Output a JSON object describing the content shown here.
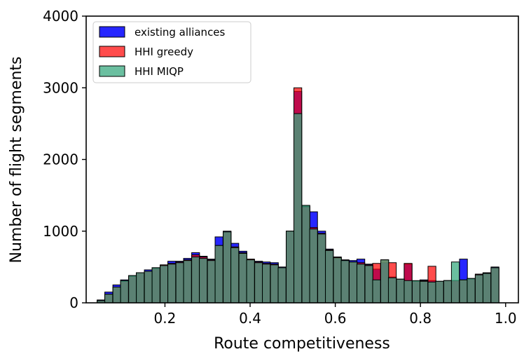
{
  "chart_data": {
    "type": "bar",
    "xlabel": "Route competitiveness",
    "ylabel": "Number of flight segments",
    "xlim": [
      0.015,
      1.03
    ],
    "ylim": [
      0,
      4000
    ],
    "xticks": [
      "0.2",
      "0.4",
      "0.6",
      "0.8",
      "1.0"
    ],
    "yticks": [
      "0",
      "1000",
      "2000",
      "3000",
      "4000"
    ],
    "grid": false,
    "legend_position": "top-left",
    "bin_width": 0.0185,
    "series": [
      {
        "name": "existing alliances",
        "color": "#0000ff",
        "bins": [
          {
            "x": 0.05,
            "y": 40
          },
          {
            "x": 0.068,
            "y": 150
          },
          {
            "x": 0.087,
            "y": 250
          },
          {
            "x": 0.105,
            "y": 320
          },
          {
            "x": 0.124,
            "y": 380
          },
          {
            "x": 0.142,
            "y": 420
          },
          {
            "x": 0.161,
            "y": 460
          },
          {
            "x": 0.179,
            "y": 490
          },
          {
            "x": 0.198,
            "y": 520
          },
          {
            "x": 0.216,
            "y": 580
          },
          {
            "x": 0.235,
            "y": 580
          },
          {
            "x": 0.253,
            "y": 620
          },
          {
            "x": 0.272,
            "y": 700
          },
          {
            "x": 0.29,
            "y": 650
          },
          {
            "x": 0.309,
            "y": 610
          },
          {
            "x": 0.327,
            "y": 920
          },
          {
            "x": 0.346,
            "y": 1000
          },
          {
            "x": 0.364,
            "y": 830
          },
          {
            "x": 0.383,
            "y": 720
          },
          {
            "x": 0.401,
            "y": 600
          },
          {
            "x": 0.42,
            "y": 580
          },
          {
            "x": 0.438,
            "y": 570
          },
          {
            "x": 0.457,
            "y": 560
          },
          {
            "x": 0.475,
            "y": 500
          },
          {
            "x": 0.494,
            "y": 1000
          },
          {
            "x": 0.512,
            "y": 2950
          },
          {
            "x": 0.531,
            "y": 1350
          },
          {
            "x": 0.549,
            "y": 1270
          },
          {
            "x": 0.568,
            "y": 1000
          },
          {
            "x": 0.586,
            "y": 750
          },
          {
            "x": 0.605,
            "y": 620
          },
          {
            "x": 0.623,
            "y": 600
          },
          {
            "x": 0.642,
            "y": 590
          },
          {
            "x": 0.66,
            "y": 610
          },
          {
            "x": 0.679,
            "y": 540
          },
          {
            "x": 0.697,
            "y": 470
          },
          {
            "x": 0.716,
            "y": 560
          },
          {
            "x": 0.734,
            "y": 360
          },
          {
            "x": 0.753,
            "y": 330
          },
          {
            "x": 0.771,
            "y": 540
          },
          {
            "x": 0.79,
            "y": 300
          },
          {
            "x": 0.808,
            "y": 320
          },
          {
            "x": 0.827,
            "y": 310
          },
          {
            "x": 0.845,
            "y": 300
          },
          {
            "x": 0.864,
            "y": 310
          },
          {
            "x": 0.882,
            "y": 310
          },
          {
            "x": 0.901,
            "y": 610
          },
          {
            "x": 0.919,
            "y": 340
          },
          {
            "x": 0.938,
            "y": 400
          },
          {
            "x": 0.956,
            "y": 420
          },
          {
            "x": 0.975,
            "y": 500
          }
        ]
      },
      {
        "name": "HHI greedy",
        "color": "#ff0000",
        "bins": [
          {
            "x": 0.05,
            "y": 30
          },
          {
            "x": 0.068,
            "y": 120
          },
          {
            "x": 0.087,
            "y": 220
          },
          {
            "x": 0.105,
            "y": 300
          },
          {
            "x": 0.124,
            "y": 370
          },
          {
            "x": 0.142,
            "y": 420
          },
          {
            "x": 0.161,
            "y": 440
          },
          {
            "x": 0.179,
            "y": 480
          },
          {
            "x": 0.198,
            "y": 530
          },
          {
            "x": 0.216,
            "y": 550
          },
          {
            "x": 0.235,
            "y": 570
          },
          {
            "x": 0.253,
            "y": 600
          },
          {
            "x": 0.272,
            "y": 670
          },
          {
            "x": 0.29,
            "y": 640
          },
          {
            "x": 0.309,
            "y": 600
          },
          {
            "x": 0.327,
            "y": 800
          },
          {
            "x": 0.346,
            "y": 990
          },
          {
            "x": 0.364,
            "y": 780
          },
          {
            "x": 0.383,
            "y": 700
          },
          {
            "x": 0.401,
            "y": 610
          },
          {
            "x": 0.42,
            "y": 570
          },
          {
            "x": 0.438,
            "y": 550
          },
          {
            "x": 0.457,
            "y": 540
          },
          {
            "x": 0.475,
            "y": 490
          },
          {
            "x": 0.494,
            "y": 1000
          },
          {
            "x": 0.512,
            "y": 3000
          },
          {
            "x": 0.531,
            "y": 1340
          },
          {
            "x": 0.549,
            "y": 1050
          },
          {
            "x": 0.568,
            "y": 970
          },
          {
            "x": 0.586,
            "y": 740
          },
          {
            "x": 0.605,
            "y": 640
          },
          {
            "x": 0.623,
            "y": 590
          },
          {
            "x": 0.642,
            "y": 570
          },
          {
            "x": 0.66,
            "y": 560
          },
          {
            "x": 0.679,
            "y": 530
          },
          {
            "x": 0.697,
            "y": 550
          },
          {
            "x": 0.716,
            "y": 600
          },
          {
            "x": 0.734,
            "y": 560
          },
          {
            "x": 0.753,
            "y": 330
          },
          {
            "x": 0.771,
            "y": 550
          },
          {
            "x": 0.79,
            "y": 300
          },
          {
            "x": 0.808,
            "y": 310
          },
          {
            "x": 0.827,
            "y": 510
          },
          {
            "x": 0.845,
            "y": 300
          },
          {
            "x": 0.864,
            "y": 310
          },
          {
            "x": 0.882,
            "y": 310
          },
          {
            "x": 0.901,
            "y": 320
          },
          {
            "x": 0.919,
            "y": 330
          },
          {
            "x": 0.938,
            "y": 400
          },
          {
            "x": 0.956,
            "y": 410
          },
          {
            "x": 0.975,
            "y": 490
          }
        ]
      },
      {
        "name": "HHI MIQP",
        "color": "#3aaa80",
        "bins": [
          {
            "x": 0.05,
            "y": 30
          },
          {
            "x": 0.068,
            "y": 120
          },
          {
            "x": 0.087,
            "y": 220
          },
          {
            "x": 0.105,
            "y": 310
          },
          {
            "x": 0.124,
            "y": 380
          },
          {
            "x": 0.142,
            "y": 420
          },
          {
            "x": 0.161,
            "y": 440
          },
          {
            "x": 0.179,
            "y": 490
          },
          {
            "x": 0.198,
            "y": 520
          },
          {
            "x": 0.216,
            "y": 540
          },
          {
            "x": 0.235,
            "y": 560
          },
          {
            "x": 0.253,
            "y": 590
          },
          {
            "x": 0.272,
            "y": 640
          },
          {
            "x": 0.29,
            "y": 620
          },
          {
            "x": 0.309,
            "y": 590
          },
          {
            "x": 0.327,
            "y": 800
          },
          {
            "x": 0.346,
            "y": 990
          },
          {
            "x": 0.364,
            "y": 770
          },
          {
            "x": 0.383,
            "y": 690
          },
          {
            "x": 0.401,
            "y": 600
          },
          {
            "x": 0.42,
            "y": 560
          },
          {
            "x": 0.438,
            "y": 540
          },
          {
            "x": 0.457,
            "y": 530
          },
          {
            "x": 0.475,
            "y": 490
          },
          {
            "x": 0.494,
            "y": 1000
          },
          {
            "x": 0.512,
            "y": 2640
          },
          {
            "x": 0.531,
            "y": 1360
          },
          {
            "x": 0.549,
            "y": 1030
          },
          {
            "x": 0.568,
            "y": 960
          },
          {
            "x": 0.586,
            "y": 730
          },
          {
            "x": 0.605,
            "y": 630
          },
          {
            "x": 0.623,
            "y": 590
          },
          {
            "x": 0.642,
            "y": 570
          },
          {
            "x": 0.66,
            "y": 540
          },
          {
            "x": 0.679,
            "y": 520
          },
          {
            "x": 0.697,
            "y": 320
          },
          {
            "x": 0.716,
            "y": 600
          },
          {
            "x": 0.734,
            "y": 350
          },
          {
            "x": 0.753,
            "y": 330
          },
          {
            "x": 0.771,
            "y": 310
          },
          {
            "x": 0.79,
            "y": 310
          },
          {
            "x": 0.808,
            "y": 300
          },
          {
            "x": 0.827,
            "y": 290
          },
          {
            "x": 0.845,
            "y": 300
          },
          {
            "x": 0.864,
            "y": 310
          },
          {
            "x": 0.882,
            "y": 570
          },
          {
            "x": 0.901,
            "y": 320
          },
          {
            "x": 0.919,
            "y": 340
          },
          {
            "x": 0.938,
            "y": 390
          },
          {
            "x": 0.956,
            "y": 410
          },
          {
            "x": 0.975,
            "y": 490
          }
        ]
      }
    ]
  }
}
